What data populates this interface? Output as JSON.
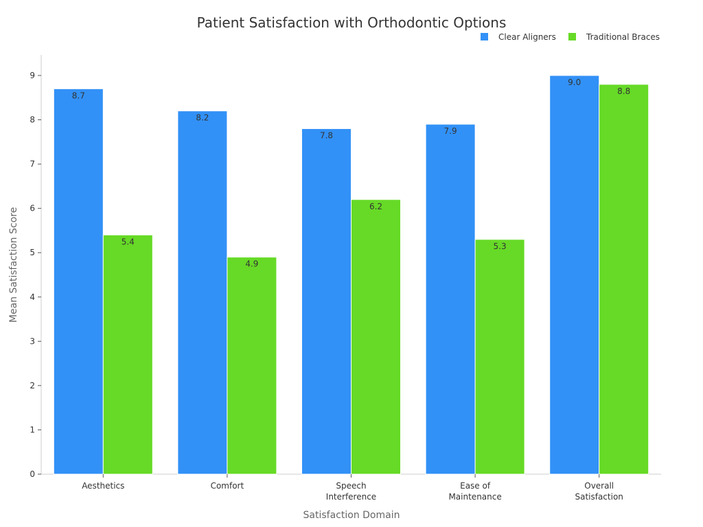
{
  "chart_data": {
    "type": "bar",
    "title": "Patient Satisfaction with Orthodontic Options",
    "xlabel": "Satisfaction Domain",
    "ylabel": "Mean Satisfaction Score",
    "categories": [
      [
        "Aesthetics"
      ],
      [
        "Comfort"
      ],
      [
        "Speech",
        "Interference"
      ],
      [
        "Ease of",
        "Maintenance"
      ],
      [
        "Overall",
        "Satisfaction"
      ]
    ],
    "series": [
      {
        "name": "Clear Aligners",
        "color": "#3291f7",
        "values": [
          8.7,
          8.2,
          7.8,
          7.9,
          9.0
        ],
        "labels": [
          "8.7",
          "8.2",
          "7.8",
          "7.9",
          "9.0"
        ]
      },
      {
        "name": "Traditional Braces",
        "color": "#66da26",
        "values": [
          5.4,
          4.9,
          6.2,
          5.3,
          8.8
        ],
        "labels": [
          "5.4",
          "4.9",
          "6.2",
          "5.3",
          "8.8"
        ]
      }
    ],
    "ylim": [
      0,
      9
    ],
    "yticks": [
      "0",
      "1",
      "2",
      "3",
      "4",
      "5",
      "6",
      "7",
      "8",
      "9"
    ],
    "grid": false,
    "legend": "top-right"
  }
}
